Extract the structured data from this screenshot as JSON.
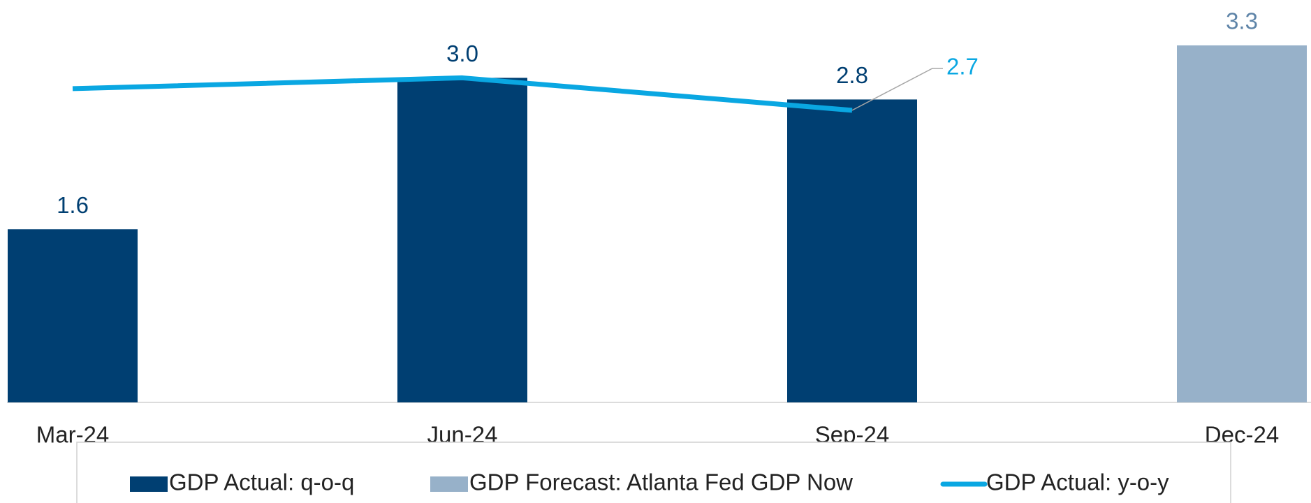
{
  "chart_data": {
    "type": "bar",
    "categories": [
      "Mar-24",
      "Jun-24",
      "Sep-24",
      "Dec-24"
    ],
    "series": [
      {
        "name": "GDP Actual: q-o-q",
        "type": "bar",
        "color": "#003f72",
        "label_color": "#003f72",
        "values": [
          1.6,
          3.0,
          2.8,
          null
        ],
        "value_labels": [
          "1.6",
          "3.0",
          "2.8",
          null
        ]
      },
      {
        "name": "GDP Forecast: Atlanta Fed GDP Now",
        "type": "bar",
        "color": "#97b1c9",
        "label_color": "#5e84a8",
        "values": [
          null,
          null,
          null,
          3.3
        ],
        "value_labels": [
          null,
          null,
          null,
          "3.3"
        ]
      },
      {
        "name": "GDP Actual: y-o-y",
        "type": "line",
        "color": "#0aa7e2",
        "label_color": "#0aa7e2",
        "values": [
          2.9,
          3.0,
          2.7,
          null
        ],
        "value_labels": [
          null,
          null,
          "2.7",
          null
        ]
      }
    ],
    "ylim": [
      0,
      3.5
    ],
    "legend": "bottom"
  }
}
